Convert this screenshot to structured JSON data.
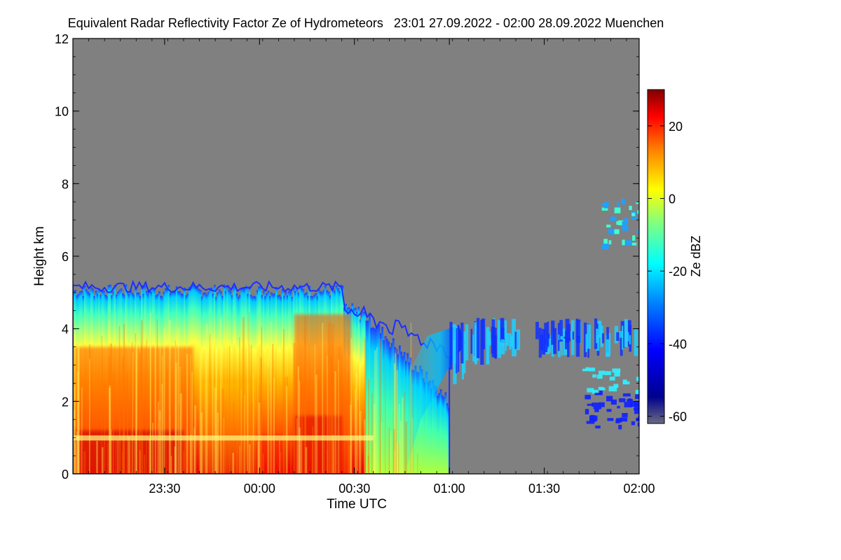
{
  "chart_data": {
    "type": "heatmap",
    "title": "Equivalent Radar Reflectivity Factor Ze of Hydrometeors   23:01 27.09.2022 - 02:00 28.09.2022 Muenchen",
    "xlabel": "Time UTC",
    "ylabel": "Height km",
    "colorbar_label": "Ze dBZ",
    "x_range_minutes_since_2301": [
      0,
      179
    ],
    "x_ticks": [
      {
        "label": "23:30",
        "minute": 29
      },
      {
        "label": "00:00",
        "minute": 59
      },
      {
        "label": "00:30",
        "minute": 89
      },
      {
        "label": "01:00",
        "minute": 119
      },
      {
        "label": "01:30",
        "minute": 149
      },
      {
        "label": "02:00",
        "minute": 179
      }
    ],
    "ylim": [
      0,
      12
    ],
    "y_ticks": [
      "0",
      "2",
      "4",
      "6",
      "8",
      "10",
      "12"
    ],
    "colorbar_range": [
      -62,
      30
    ],
    "colorbar_ticks": [
      "20",
      "0",
      "-20",
      "-40",
      "-60"
    ],
    "background_color": "#808080",
    "regions": [
      {
        "name": "main precipitation",
        "time_start": "23:01",
        "time_end": "01:00",
        "top_km": 5.2,
        "max_dbz": 25
      },
      {
        "name": "melting layer",
        "height_km": 1.0
      },
      {
        "name": "scattered cloud",
        "time_start": "01:00",
        "time_end": "02:00",
        "top_km": 4.3,
        "max_dbz": -15
      },
      {
        "name": "upper cloud",
        "time_start": "01:43",
        "time_end": "02:00",
        "base_km": 6.3,
        "top_km": 7.6,
        "max_dbz": -20
      },
      {
        "name": "lower cloud",
        "time_start": "01:42",
        "time_end": "02:00",
        "base_km": 1.3,
        "top_km": 3.0,
        "max_dbz": -25
      }
    ]
  }
}
